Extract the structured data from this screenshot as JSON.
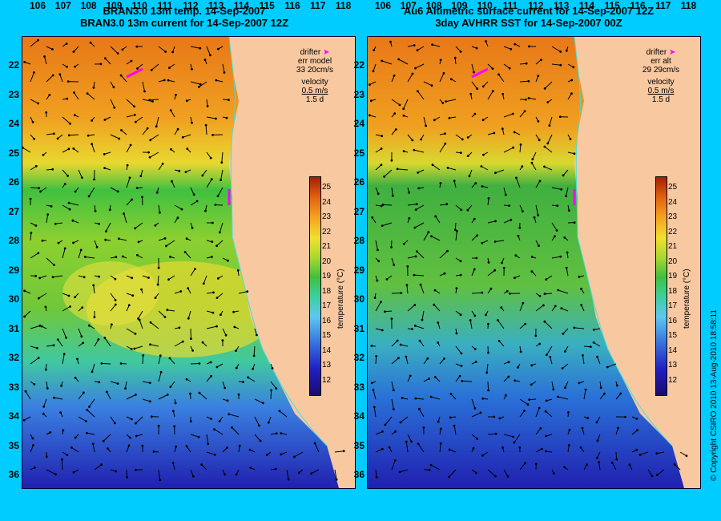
{
  "left_title": [
    "BRAN3.0 13m temp. 14-Sep-2007",
    "BRAN3.0 13m current for 14-Sep-2007 12Z"
  ],
  "right_title": [
    "Au6 Altimetric surface current for 14-Sep-2007 12Z",
    "3day AVHRR SST for 14-Sep-2007 00Z"
  ],
  "lat_labels": [
    "22",
    "23",
    "24",
    "25",
    "26",
    "27",
    "28",
    "29",
    "30",
    "31",
    "32",
    "33",
    "34",
    "35",
    "36"
  ],
  "lon_labels": [
    "106",
    "107",
    "108",
    "109",
    "110",
    "111",
    "112",
    "113",
    "114",
    "115",
    "116",
    "117",
    "118"
  ],
  "left_legend": {
    "drifter": "drifter",
    "err_label": "err model",
    "err_value": "33 20cm/s",
    "velocity": "velocity",
    "scale": "0.5 m/s",
    "days": "1.5 d"
  },
  "right_legend": {
    "drifter": "drifter",
    "err_label": "err alt",
    "err_value": "29 29cm/s",
    "velocity": "velocity",
    "scale": "0.5 m/s",
    "days": "1.5 d"
  },
  "colorbar": {
    "ticks": [
      "25",
      "24",
      "23",
      "22",
      "21",
      "20",
      "19",
      "18",
      "17",
      "16",
      "15",
      "14",
      "13",
      "12"
    ],
    "unit": "temperature (°C)"
  },
  "copyright": "© Copyright CSIRO 2010   13-Aug-2010 18:58:11",
  "colors": {
    "background": "#00ccff",
    "land": "#f8c8a0",
    "drifter": "#ff00ff"
  }
}
